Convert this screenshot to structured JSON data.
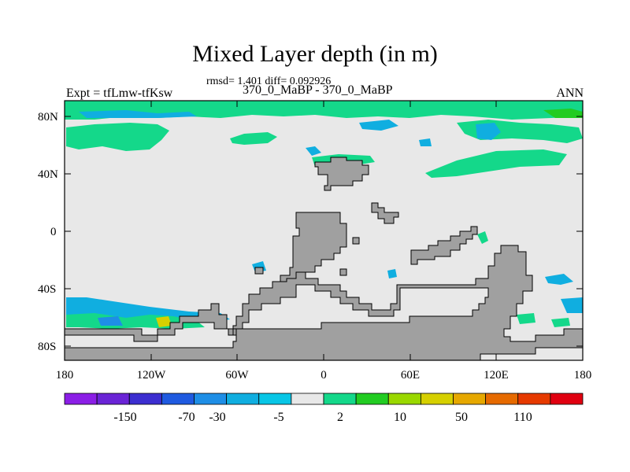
{
  "title": "Mixed Layer depth (in m)",
  "stats": "rmsd= 1.401 diff= 0.092926",
  "experiment": "Expt = tfLmw-tfKsw",
  "comparison": "370_0_MaBP - 370_0_MaBP",
  "season": "ANN",
  "axes": {
    "lat_ticks": [
      "80N",
      "40N",
      "0",
      "40S",
      "80S"
    ],
    "lon_ticks": [
      "180",
      "120W",
      "60W",
      "0",
      "60E",
      "120E",
      "180"
    ]
  },
  "colorbar": {
    "colors": [
      "#8b1ee6",
      "#6a24d6",
      "#3c2ed0",
      "#1f5ae0",
      "#1e8ee6",
      "#10aee0",
      "#08c6e6",
      "#e8e8e8",
      "#14d88a",
      "#22cc22",
      "#9ad800",
      "#d6d000",
      "#e6a800",
      "#e66a00",
      "#e63a00",
      "#e00010"
    ],
    "labels": [
      "-150",
      "-70",
      "-30",
      "-5",
      "2",
      "10",
      "50",
      "110"
    ]
  },
  "colors": {
    "ocean": "#e8e8e8",
    "land": "#a0a0a0",
    "positive_small": "#14d88a",
    "negative_small": "#10aee0",
    "positive_mid": "#22cc22",
    "positive_high": "#d6d000"
  }
}
